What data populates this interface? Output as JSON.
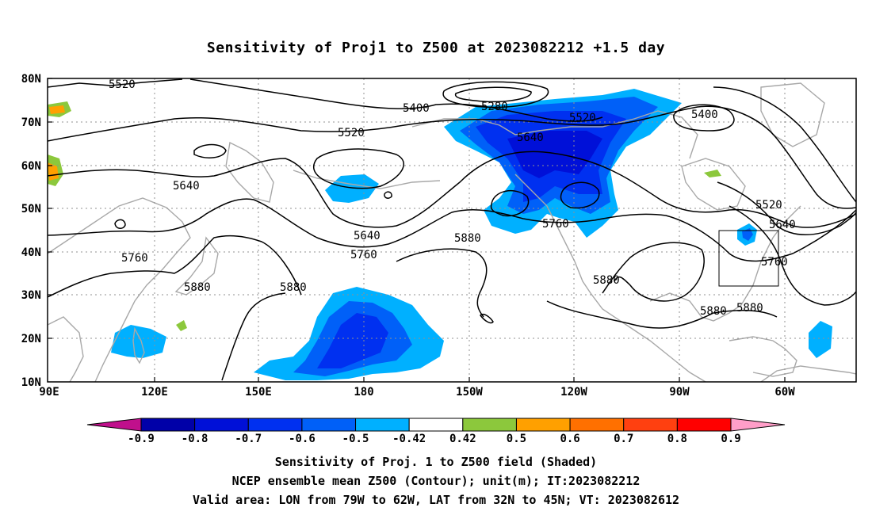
{
  "title": "Sensitivity of Proj1 to Z500 at 2023082212 +1.5 day",
  "axes": {
    "lat_labels": [
      "80N",
      "70N",
      "60N",
      "50N",
      "40N",
      "30N",
      "20N",
      "10N"
    ],
    "lon_labels": [
      "90E",
      "120E",
      "150E",
      "180",
      "150W",
      "120W",
      "90W",
      "60W"
    ]
  },
  "contour_labels": [
    {
      "id": "c1",
      "text": "5520"
    },
    {
      "id": "c2",
      "text": "5400"
    },
    {
      "id": "c3",
      "text": "5280"
    },
    {
      "id": "c4",
      "text": "5520"
    },
    {
      "id": "c5",
      "text": "5520"
    },
    {
      "id": "c6",
      "text": "5640"
    },
    {
      "id": "c7",
      "text": "5400"
    },
    {
      "id": "c8",
      "text": "5640"
    },
    {
      "id": "c9",
      "text": "5640"
    },
    {
      "id": "c10",
      "text": "5760"
    },
    {
      "id": "c11",
      "text": "5520"
    },
    {
      "id": "c12",
      "text": "5640"
    },
    {
      "id": "c13",
      "text": "5760"
    },
    {
      "id": "c14",
      "text": "5760"
    },
    {
      "id": "c15",
      "text": "5880"
    },
    {
      "id": "c16",
      "text": "5880"
    },
    {
      "id": "c17",
      "text": "5880"
    },
    {
      "id": "c18",
      "text": "5880"
    },
    {
      "id": "c19",
      "text": "5880"
    },
    {
      "id": "c20",
      "text": "5880"
    },
    {
      "id": "c21",
      "text": "5760"
    }
  ],
  "colorbar": {
    "labels": [
      "-0.9",
      "-0.8",
      "-0.7",
      "-0.6",
      "-0.5",
      "-0.42",
      "0.42",
      "0.5",
      "0.6",
      "0.7",
      "0.8",
      "0.9"
    ],
    "colors": [
      "#0000a8",
      "#0010d8",
      "#0030f0",
      "#0060f8",
      "#00b0ff",
      "#ffffff",
      "#8cc83c",
      "#ffa000",
      "#ff7000",
      "#ff4010",
      "#ff0000"
    ],
    "left_end_color": "#c0108c",
    "right_end_color": "#ff9ec8"
  },
  "captions": [
    "Sensitivity of Proj. 1 to Z500 field (Shaded)",
    "NCEP ensemble mean Z500 (Contour); unit(m); IT:2023082212",
    "Valid area: LON from 79W to 62W, LAT from 32N to 45N; VT: 2023082612"
  ],
  "valid_area": {
    "lon_min": -79,
    "lon_max": -62,
    "lat_min": 32,
    "lat_max": 45
  }
}
